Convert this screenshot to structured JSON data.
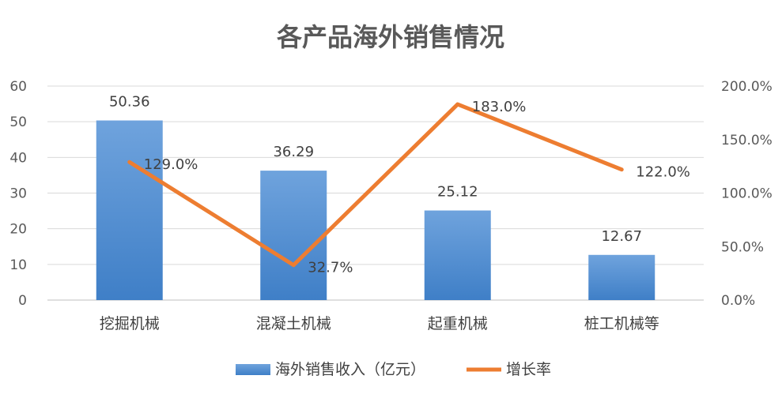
{
  "chart_data": {
    "type": "bar",
    "title": "各产品海外销售情况",
    "categories": [
      "挖掘机械",
      "混凝土机械",
      "起重机械",
      "桩工机械等"
    ],
    "series": [
      {
        "name": "海外销售收入（亿元）",
        "type": "bar",
        "axis": "left",
        "values": [
          50.36,
          36.29,
          25.12,
          12.67
        ],
        "labels": [
          "50.36",
          "36.29",
          "25.12",
          "12.67"
        ]
      },
      {
        "name": "增长率",
        "type": "line",
        "axis": "right",
        "values": [
          129.0,
          32.7,
          183.0,
          122.0
        ],
        "labels": [
          "129.0%",
          "32.7%",
          "183.0%",
          "122.0%"
        ]
      }
    ],
    "y_left": {
      "ylim": [
        0,
        60
      ],
      "ticks": [
        "0",
        "10",
        "20",
        "30",
        "40",
        "50",
        "60"
      ]
    },
    "y_right": {
      "ylim": [
        0,
        200
      ],
      "ticks": [
        "0.0%",
        "50.0%",
        "100.0%",
        "150.0%",
        "200.0%"
      ]
    },
    "grid": true,
    "legend_position": "bottom",
    "colors": {
      "bar_top": "#6fa3dd",
      "bar_bottom": "#3f7fc7",
      "line": "#ed7d31",
      "grid": "#d9d9d9",
      "axis": "#bfbfbf"
    }
  }
}
